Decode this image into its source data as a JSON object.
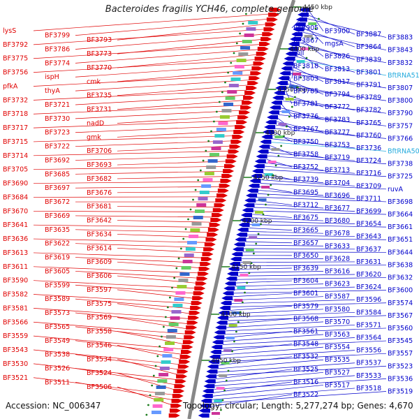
{
  "title": "Bacteroides fragilis YCH46, complete genome",
  "footer": {
    "accession": "Accession: NC_006347",
    "details": "Topology: circular; Length: 5,277,274 bp; Genes: 4,670"
  },
  "colors": {
    "left_strand": "#e00000",
    "right_strand": "#0000cc",
    "backbone": "#888888",
    "trna": "#22aadd",
    "tick": "#1a7a1a"
  },
  "ticks": [
    "4450 kbp",
    "4400 kbp",
    "4350 kbp",
    "4300 kbp",
    "4250 kbp",
    "4200 kbp",
    "4150 kbp",
    "4100 kbp",
    "4050 kbp"
  ],
  "left_labels": [
    "lysS",
    "BF3799",
    "BF3793",
    "BF3792",
    "BF3786",
    "BF3773",
    "BF3775",
    "BF3774",
    "BF3770",
    "BF3756",
    "ispH",
    "cmk",
    "pfkA",
    "thyA",
    "BF3735",
    "BF3732",
    "BF3721",
    "BF3731",
    "BF3718",
    "BF3730",
    "nadD",
    "BF3717",
    "BF3723",
    "gmk",
    "BF3715",
    "BF3722",
    "BF3706",
    "BF3714",
    "BF3692",
    "BF3693",
    "BF3705",
    "BF3685",
    "BF3682",
    "BF3690",
    "BF3697",
    "BF3676",
    "BF3684",
    "BF3672",
    "BF3681",
    "BF3670",
    "BF3669",
    "BF3642",
    "BF3641",
    "BF3635",
    "BF3634",
    "BF3636",
    "BF3622",
    "BF3614",
    "BF3613",
    "BF3619",
    "BF3609",
    "BF3611",
    "BF3605",
    "BF3606",
    "BF3590",
    "BF3599",
    "BF3597",
    "BF3582",
    "BF3589",
    "BF3575",
    "BF3581",
    "BF3573",
    "BF3569",
    "BF3566",
    "BF3565",
    "BF3558",
    "BF3559",
    "BF3549",
    "BF3546",
    "BF3543",
    "BF3538",
    "BF3534",
    "BF3530",
    "BF3526",
    "BF3524",
    "BF3521",
    "BF3511",
    "BF3506"
  ],
  "right_labels": [
    "BF3905",
    "BF3900",
    "BF3887",
    "BF3883",
    "BF3867",
    "mgsA",
    "BF3864",
    "BF3843",
    "rplI",
    "BF3826",
    "BF3839",
    "BF3832",
    "BF3818",
    "BF3813",
    "BF3801",
    "BftRNA51",
    "BF3803",
    "BF3817",
    "BF3791",
    "BF3807",
    "BF3785",
    "BF3794",
    "BF3789",
    "BF3800",
    "BF3781",
    "BF3772",
    "BF3782",
    "BF3790",
    "BF3776",
    "BF3783",
    "BF3765",
    "BF3757",
    "BF3767",
    "BF3777",
    "BF3760",
    "BF3766",
    "BF3750",
    "BF3753",
    "BF3736",
    "BftRNA50",
    "BF3758",
    "BF3719",
    "BF3724",
    "BF3738",
    "BF3752",
    "BF3713",
    "BF3716",
    "BF3725",
    "BF3739",
    "BF3704",
    "BF3709",
    "ruvA",
    "BF3695",
    "BF3696",
    "BF3711",
    "BF3698",
    "BF3712",
    "BF3677",
    "BF3699",
    "BF3664",
    "BF3675",
    "BF3680",
    "BF3654",
    "BF3661",
    "BF3665",
    "BF3678",
    "BF3643",
    "BF3651",
    "BF3657",
    "BF3633",
    "BF3637",
    "BF3644",
    "BF3650",
    "BF3628",
    "BF3631",
    "BF3638",
    "BF3639",
    "BF3616",
    "BF3620",
    "BF3632",
    "BF3604",
    "BF3623",
    "BF3624",
    "BF3600",
    "BF3601",
    "BF3587",
    "BF3596",
    "BF3574",
    "BF3579",
    "BF3580",
    "BF3584",
    "BF3567",
    "BF3568",
    "BF3570",
    "BF3571",
    "BF3560",
    "BF3561",
    "BF3563",
    "BF3564",
    "BF3545",
    "BF3548",
    "BF3554",
    "BF3556",
    "BF3557",
    "BF3532",
    "BF3535",
    "BF3537",
    "BF3523",
    "BF3525",
    "BF3527",
    "BF3533",
    "BF3536",
    "BF3516",
    "BF3517",
    "BF3518",
    "BF3519",
    "BF3522"
  ]
}
